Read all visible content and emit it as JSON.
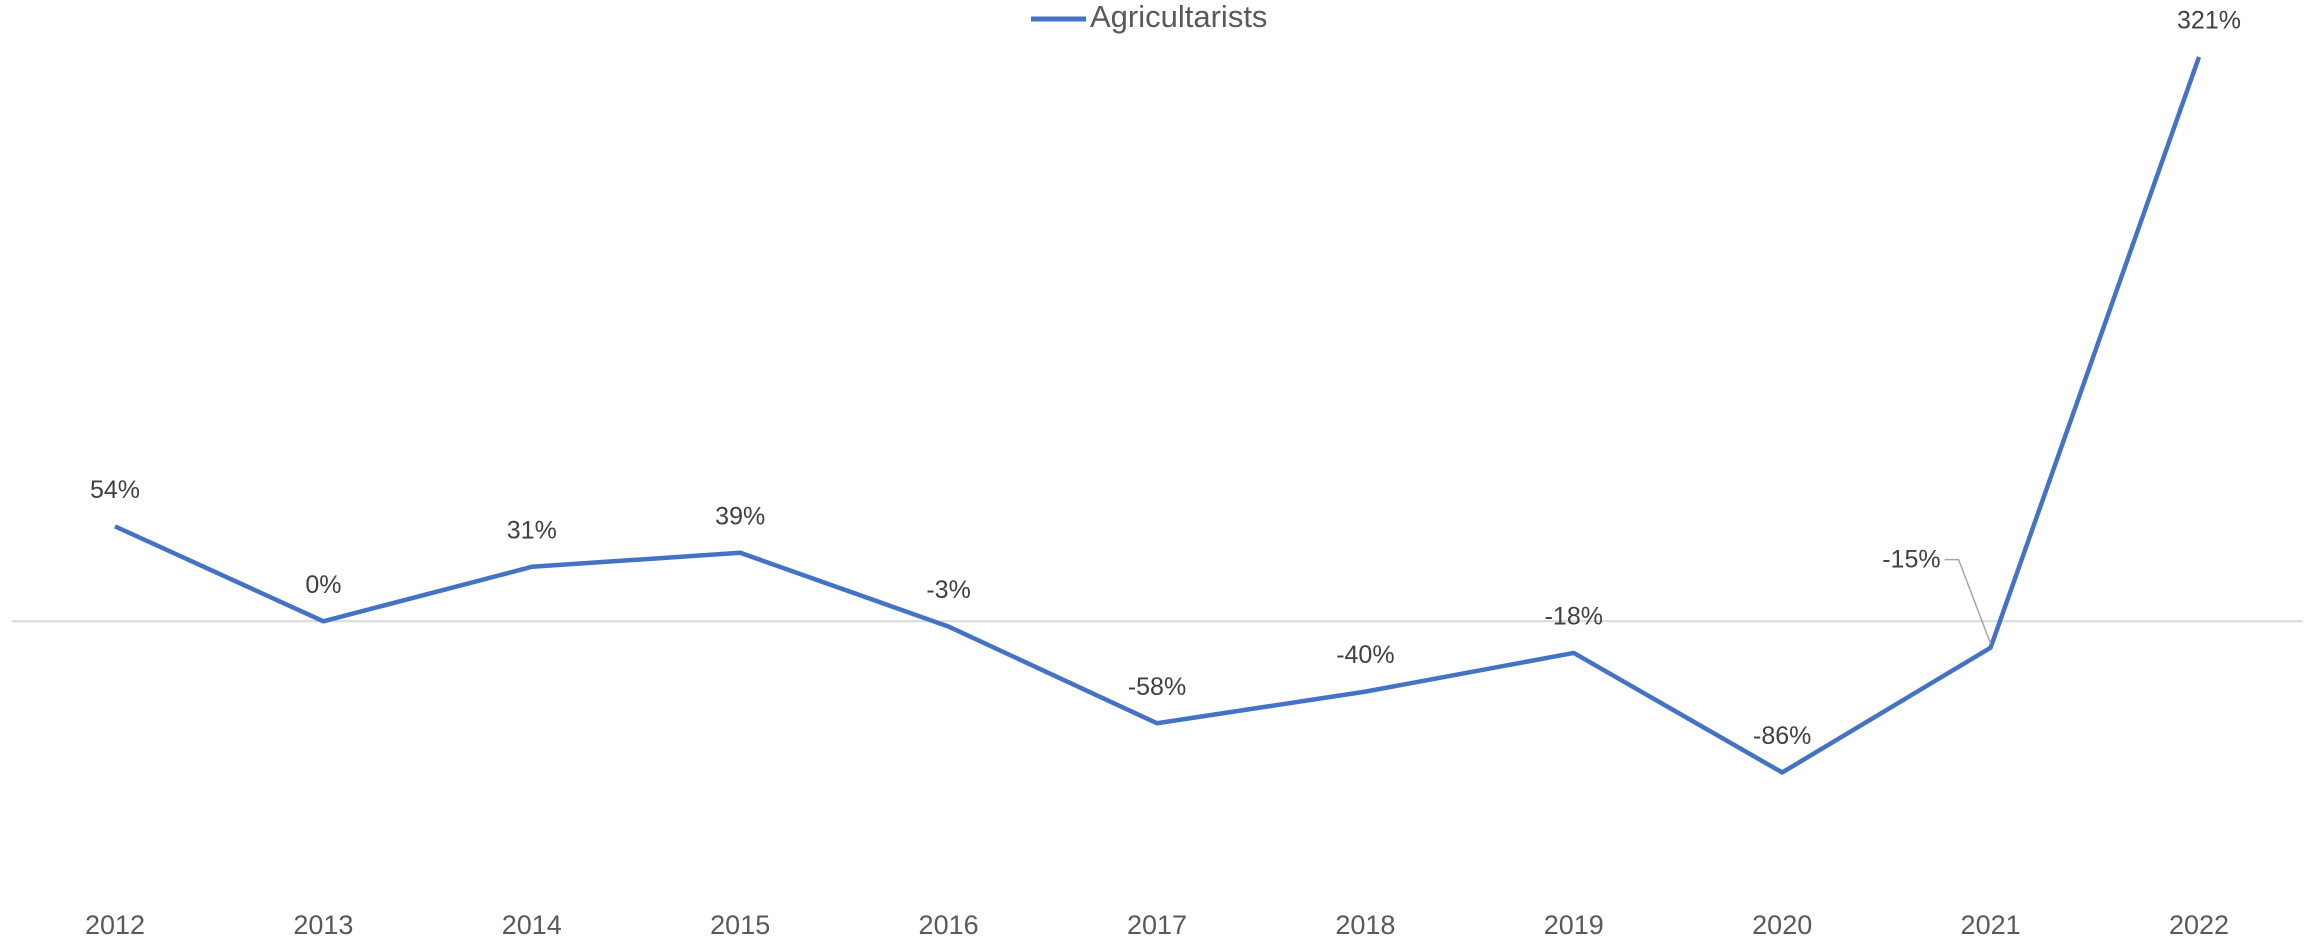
{
  "chart_data": {
    "type": "line",
    "categories": [
      "2012",
      "2013",
      "2014",
      "2015",
      "2016",
      "2017",
      "2018",
      "2019",
      "2020",
      "2021",
      "2022"
    ],
    "series": [
      {
        "name": "Agricultarists",
        "color": "#4472c4",
        "values": [
          54,
          0,
          31,
          39,
          -3,
          -58,
          -40,
          -18,
          -86,
          -15,
          321
        ],
        "value_labels": [
          "54%",
          "0%",
          "31%",
          "39%",
          "-3%",
          "-58%",
          "-40%",
          "-18%",
          "-86%",
          "-15%",
          "321%"
        ]
      }
    ],
    "ylim": [
      -150,
      350
    ],
    "legend": "top"
  }
}
